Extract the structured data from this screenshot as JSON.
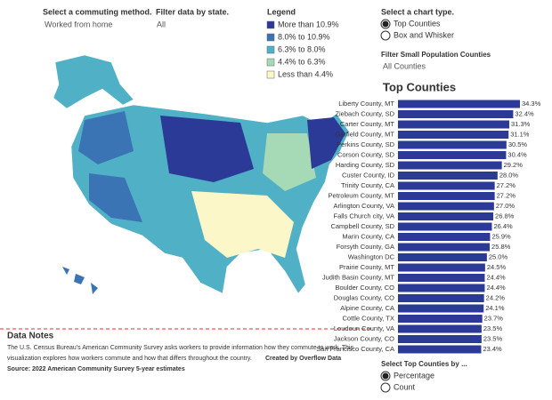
{
  "controls": {
    "commuting_method": {
      "label": "Select a commuting method.",
      "value": "Worked from home"
    },
    "state_filter": {
      "label": "Filter data by state.",
      "value": "All"
    },
    "chart_type": {
      "label": "Select a chart type.",
      "options": [
        "Top Counties",
        "Box and Whisker"
      ]
    },
    "population_filter": {
      "label": "Filter Small Population Counties",
      "value": "All Counties"
    },
    "top_by": {
      "label": "Select Top Counties by ...",
      "options": [
        "Percentage",
        "Count"
      ]
    }
  },
  "legend": {
    "title": "Legend",
    "items": [
      {
        "label": "More than 10.9%",
        "color": "#2c3a97"
      },
      {
        "label": "8.0% to 10.9%",
        "color": "#3a74b5"
      },
      {
        "label": "6.3% to 8.0%",
        "color": "#4fb0c6"
      },
      {
        "label": "4.4% to 6.3%",
        "color": "#a6d9b5"
      },
      {
        "label": "Less than 4.4%",
        "color": "#fbf7c9"
      }
    ]
  },
  "notes": {
    "title": "Data Notes",
    "lines": [
      "The U.S. Census Bureau's American Community Survey asks workers to provide information how they commute to work. This",
      "visualization explores how workers commute and how that differs throughout the country."
    ],
    "credit": "Created by Overflow Data",
    "source": "Source: 2022 American Community Survey 5-year estimates"
  },
  "chart_data": {
    "type": "bar",
    "orientation": "horizontal",
    "title": "Top Counties",
    "color": "#2c3a97",
    "categories": [
      "Liberty County, MT",
      "Ziebach County, SD",
      "Carter County, MT",
      "Garfield County, MT",
      "Perkins County, SD",
      "Corson County, SD",
      "Harding County, SD",
      "Custer County, ID",
      "Trinity County, CA",
      "Petroleum County, MT",
      "Arlington County, VA",
      "Falls Church city, VA",
      "Campbell County, SD",
      "Marin County, CA",
      "Forsyth County, GA",
      "Washington DC",
      "Prairie County, MT",
      "Judith Basin County, MT",
      "Boulder County, CO",
      "Douglas County, CO",
      "Alpine County, CA",
      "Cottle County, TX",
      "Loudoun County, VA",
      "Jackson County, CO",
      "San Francisco County, CA"
    ],
    "values": [
      34.3,
      32.4,
      31.3,
      31.1,
      30.5,
      30.4,
      29.2,
      28.0,
      27.2,
      27.2,
      27.0,
      26.8,
      26.4,
      25.9,
      25.8,
      25.0,
      24.5,
      24.4,
      24.4,
      24.2,
      24.1,
      23.7,
      23.5,
      23.5,
      23.4
    ],
    "value_labels": [
      "34.3%",
      "32.4%",
      "31.3%",
      "31.1%",
      "30.5%",
      "30.4%",
      "29.2%",
      "28.0%",
      "27.2%",
      "27.2%",
      "27.0%",
      "26.8%",
      "26.4%",
      "25.9%",
      "25.8%",
      "25.0%",
      "24.5%",
      "24.4%",
      "24.4%",
      "24.2%",
      "24.1%",
      "23.7%",
      "23.5%",
      "23.5%",
      "23.4%"
    ]
  }
}
